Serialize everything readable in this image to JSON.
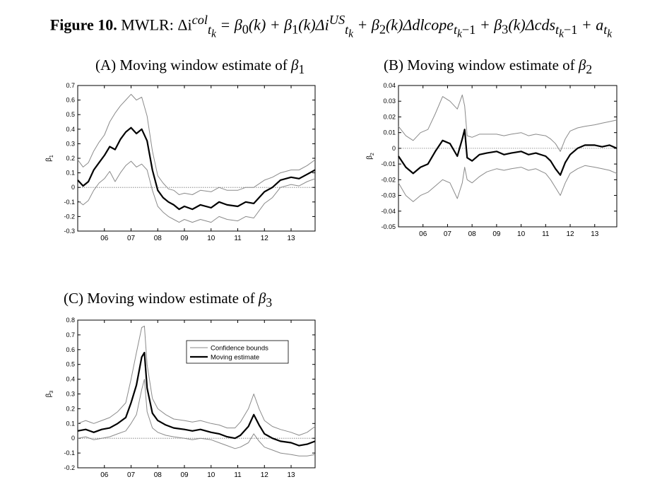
{
  "figure": {
    "label": "Figure 10.",
    "text": "MWLR: Δi",
    "lhs_sup": "col",
    "lhs_sub": "t",
    "lhs_subsub": "k",
    "eq": "= β",
    "b0": "0",
    "t0": "(k) + β",
    "b1": "1",
    "t1": "(k)Δi",
    "us_sup": "US",
    "us_sub": "t",
    "us_subsub": "k",
    "t2": " + β",
    "b2": "2",
    "t3": "(k)Δdlcope",
    "s3": "t",
    "s3k": "k",
    "s3m": "−1",
    "t4": " + β",
    "b3": "3",
    "t5": "(k)Δcds",
    "s5": "t",
    "s5k": "k",
    "s5m": "−1",
    "t6": " + a",
    "s6": "t",
    "s6k": "k"
  },
  "chart_data": [
    {
      "id": "A",
      "type": "line",
      "title_prefix": "(A) Moving window estimate of ",
      "title_symbol": "β",
      "title_sub": "1",
      "ylabel": "β",
      "ylabel_sub": "1",
      "xlabel": "",
      "xlim": [
        2005.0,
        2013.9
      ],
      "ylim": [
        -0.3,
        0.7
      ],
      "yticks": [
        -0.3,
        -0.2,
        -0.1,
        0,
        0.1,
        0.2,
        0.3,
        0.4,
        0.5,
        0.6,
        0.7
      ],
      "ytick_labels": [
        "-0.3",
        "-0.2",
        "-0.1",
        "0",
        "0.1",
        "0.2",
        "0.3",
        "0.4",
        "0.5",
        "0.6",
        "0.7"
      ],
      "xticks": [
        2006,
        2007,
        2008,
        2009,
        2010,
        2011,
        2012,
        2013
      ],
      "xtick_labels": [
        "06",
        "07",
        "08",
        "09",
        "10",
        "11",
        "12",
        "13"
      ],
      "zero_line": true,
      "series": [
        {
          "name": "Moving estimate",
          "x": [
            2005.0,
            2005.2,
            2005.4,
            2005.6,
            2005.8,
            2006.0,
            2006.2,
            2006.4,
            2006.6,
            2006.8,
            2007.0,
            2007.2,
            2007.4,
            2007.6,
            2007.8,
            2008.0,
            2008.2,
            2008.4,
            2008.6,
            2008.8,
            2009.0,
            2009.3,
            2009.6,
            2010.0,
            2010.3,
            2010.6,
            2011.0,
            2011.3,
            2011.6,
            2012.0,
            2012.3,
            2012.6,
            2013.0,
            2013.3,
            2013.6,
            2013.9
          ],
          "y": [
            0.05,
            0.01,
            0.04,
            0.12,
            0.17,
            0.22,
            0.28,
            0.26,
            0.33,
            0.38,
            0.41,
            0.37,
            0.4,
            0.32,
            0.12,
            -0.02,
            -0.07,
            -0.1,
            -0.12,
            -0.15,
            -0.13,
            -0.15,
            -0.12,
            -0.14,
            -0.1,
            -0.12,
            -0.13,
            -0.1,
            -0.11,
            -0.03,
            0.0,
            0.05,
            0.07,
            0.06,
            0.09,
            0.12
          ]
        },
        {
          "name": "Confidence bounds",
          "x": [
            2005.0,
            2005.2,
            2005.4,
            2005.6,
            2005.8,
            2006.0,
            2006.2,
            2006.4,
            2006.6,
            2006.8,
            2007.0,
            2007.2,
            2007.4,
            2007.6,
            2007.8,
            2008.0,
            2008.2,
            2008.4,
            2008.6,
            2008.8,
            2009.0,
            2009.3,
            2009.6,
            2010.0,
            2010.3,
            2010.6,
            2011.0,
            2011.3,
            2011.6,
            2012.0,
            2012.3,
            2012.6,
            2013.0,
            2013.3,
            2013.6,
            2013.9
          ],
          "y": [
            0.19,
            0.14,
            0.17,
            0.25,
            0.31,
            0.36,
            0.45,
            0.51,
            0.56,
            0.6,
            0.64,
            0.6,
            0.62,
            0.49,
            0.25,
            0.08,
            0.03,
            -0.01,
            -0.02,
            -0.05,
            -0.04,
            -0.05,
            -0.02,
            -0.03,
            0.0,
            -0.02,
            -0.02,
            0.0,
            0.0,
            0.05,
            0.07,
            0.1,
            0.12,
            0.12,
            0.15,
            0.19
          ]
        },
        {
          "name": "Confidence bounds (lower)",
          "x": [
            2005.0,
            2005.2,
            2005.4,
            2005.6,
            2005.8,
            2006.0,
            2006.2,
            2006.4,
            2006.6,
            2006.8,
            2007.0,
            2007.2,
            2007.4,
            2007.6,
            2007.8,
            2008.0,
            2008.2,
            2008.4,
            2008.6,
            2008.8,
            2009.0,
            2009.3,
            2009.6,
            2010.0,
            2010.3,
            2010.6,
            2011.0,
            2011.3,
            2011.6,
            2012.0,
            2012.3,
            2012.6,
            2013.0,
            2013.3,
            2013.6,
            2013.9
          ],
          "y": [
            -0.09,
            -0.12,
            -0.09,
            -0.02,
            0.03,
            0.06,
            0.11,
            0.04,
            0.1,
            0.15,
            0.18,
            0.14,
            0.16,
            0.12,
            -0.02,
            -0.13,
            -0.17,
            -0.2,
            -0.22,
            -0.24,
            -0.22,
            -0.24,
            -0.22,
            -0.24,
            -0.2,
            -0.22,
            -0.23,
            -0.2,
            -0.21,
            -0.11,
            -0.07,
            0.0,
            0.02,
            0.01,
            0.04,
            0.06
          ]
        }
      ]
    },
    {
      "id": "B",
      "type": "line",
      "title_prefix": "(B) Moving window estimate of ",
      "title_symbol": "β",
      "title_sub": "2",
      "ylabel": "β",
      "ylabel_sub": "2",
      "xlabel": "",
      "xlim": [
        2005.0,
        2013.9
      ],
      "ylim": [
        -0.05,
        0.04
      ],
      "yticks": [
        -0.05,
        -0.04,
        -0.03,
        -0.02,
        -0.01,
        0,
        0.01,
        0.02,
        0.03,
        0.04
      ],
      "ytick_labels": [
        "-0.05",
        "-0.04",
        "-0.03",
        "-0.02",
        "-0.01",
        "0",
        "0.01",
        "0.02",
        "0.03",
        "0.04"
      ],
      "xticks": [
        2006,
        2007,
        2008,
        2009,
        2010,
        2011,
        2012,
        2013
      ],
      "xtick_labels": [
        "06",
        "07",
        "08",
        "09",
        "10",
        "11",
        "12",
        "13"
      ],
      "zero_line": true,
      "series": [
        {
          "name": "Moving estimate",
          "x": [
            2005.0,
            2005.3,
            2005.6,
            2005.9,
            2006.2,
            2006.5,
            2006.8,
            2007.1,
            2007.4,
            2007.6,
            2007.7,
            2007.8,
            2008.0,
            2008.3,
            2008.6,
            2009.0,
            2009.3,
            2009.6,
            2010.0,
            2010.3,
            2010.6,
            2011.0,
            2011.2,
            2011.4,
            2011.6,
            2011.8,
            2012.0,
            2012.3,
            2012.6,
            2013.0,
            2013.3,
            2013.6,
            2013.9
          ],
          "y": [
            -0.005,
            -0.012,
            -0.016,
            -0.012,
            -0.01,
            -0.002,
            0.005,
            0.003,
            -0.005,
            0.006,
            0.012,
            -0.006,
            -0.008,
            -0.004,
            -0.003,
            -0.002,
            -0.004,
            -0.003,
            -0.002,
            -0.004,
            -0.003,
            -0.005,
            -0.008,
            -0.013,
            -0.017,
            -0.009,
            -0.004,
            0.0,
            0.002,
            0.002,
            0.001,
            0.002,
            0.0
          ]
        },
        {
          "name": "Confidence bounds",
          "x": [
            2005.0,
            2005.3,
            2005.6,
            2005.9,
            2006.2,
            2006.5,
            2006.8,
            2007.1,
            2007.4,
            2007.6,
            2007.7,
            2007.8,
            2008.0,
            2008.3,
            2008.6,
            2009.0,
            2009.3,
            2009.6,
            2010.0,
            2010.3,
            2010.6,
            2011.0,
            2011.2,
            2011.4,
            2011.6,
            2011.8,
            2012.0,
            2012.3,
            2012.6,
            2013.0,
            2013.3,
            2013.6,
            2013.9
          ],
          "y": [
            0.014,
            0.008,
            0.005,
            0.01,
            0.012,
            0.022,
            0.033,
            0.03,
            0.025,
            0.034,
            0.027,
            0.008,
            0.007,
            0.009,
            0.009,
            0.009,
            0.008,
            0.009,
            0.01,
            0.008,
            0.009,
            0.008,
            0.006,
            0.003,
            -0.002,
            0.006,
            0.011,
            0.013,
            0.014,
            0.015,
            0.016,
            0.017,
            0.018
          ]
        },
        {
          "name": "Confidence bounds (lower)",
          "x": [
            2005.0,
            2005.3,
            2005.6,
            2005.9,
            2006.2,
            2006.5,
            2006.8,
            2007.1,
            2007.4,
            2007.6,
            2007.7,
            2007.8,
            2008.0,
            2008.3,
            2008.6,
            2009.0,
            2009.3,
            2009.6,
            2010.0,
            2010.3,
            2010.6,
            2011.0,
            2011.2,
            2011.4,
            2011.6,
            2011.8,
            2012.0,
            2012.3,
            2012.6,
            2013.0,
            2013.3,
            2013.6,
            2013.9
          ],
          "y": [
            -0.022,
            -0.03,
            -0.034,
            -0.03,
            -0.028,
            -0.024,
            -0.02,
            -0.022,
            -0.032,
            -0.022,
            -0.012,
            -0.02,
            -0.022,
            -0.018,
            -0.015,
            -0.013,
            -0.014,
            -0.013,
            -0.012,
            -0.014,
            -0.013,
            -0.016,
            -0.02,
            -0.025,
            -0.03,
            -0.022,
            -0.016,
            -0.013,
            -0.011,
            -0.012,
            -0.013,
            -0.014,
            -0.016
          ]
        }
      ]
    },
    {
      "id": "C",
      "type": "line",
      "title_prefix": "(C) Moving window estimate of ",
      "title_symbol": "β",
      "title_sub": "3",
      "ylabel": "β",
      "ylabel_sub": "3",
      "xlabel": "",
      "xlim": [
        2005.0,
        2013.9
      ],
      "ylim": [
        -0.2,
        0.8
      ],
      "yticks": [
        -0.2,
        -0.1,
        0,
        0.1,
        0.2,
        0.3,
        0.4,
        0.5,
        0.6,
        0.7,
        0.8
      ],
      "ytick_labels": [
        "-0.2",
        "-0.1",
        "0",
        "0.1",
        "0.2",
        "0.3",
        "0.4",
        "0.5",
        "0.6",
        "0.7",
        "0.8"
      ],
      "xticks": [
        2006,
        2007,
        2008,
        2009,
        2010,
        2011,
        2012,
        2013
      ],
      "xtick_labels": [
        "06",
        "07",
        "08",
        "09",
        "10",
        "11",
        "12",
        "13"
      ],
      "zero_line": true,
      "legend": {
        "placement": "top-right",
        "entries": [
          "Confidence bounds",
          "Moving estimate"
        ]
      },
      "series": [
        {
          "name": "Moving estimate",
          "x": [
            2005.0,
            2005.3,
            2005.6,
            2005.9,
            2006.2,
            2006.5,
            2006.8,
            2007.0,
            2007.2,
            2007.4,
            2007.5,
            2007.6,
            2007.8,
            2008.0,
            2008.3,
            2008.6,
            2009.0,
            2009.3,
            2009.6,
            2010.0,
            2010.3,
            2010.6,
            2010.9,
            2011.1,
            2011.4,
            2011.6,
            2011.8,
            2012.0,
            2012.3,
            2012.6,
            2013.0,
            2013.3,
            2013.6,
            2013.9
          ],
          "y": [
            0.05,
            0.06,
            0.04,
            0.06,
            0.07,
            0.1,
            0.14,
            0.24,
            0.36,
            0.55,
            0.58,
            0.34,
            0.17,
            0.12,
            0.09,
            0.07,
            0.06,
            0.05,
            0.06,
            0.04,
            0.03,
            0.01,
            0.0,
            0.02,
            0.08,
            0.16,
            0.09,
            0.03,
            0.0,
            -0.02,
            -0.03,
            -0.05,
            -0.04,
            -0.02
          ]
        },
        {
          "name": "Confidence bounds",
          "x": [
            2005.0,
            2005.3,
            2005.6,
            2005.9,
            2006.2,
            2006.5,
            2006.8,
            2007.0,
            2007.2,
            2007.4,
            2007.5,
            2007.6,
            2007.8,
            2008.0,
            2008.3,
            2008.6,
            2009.0,
            2009.3,
            2009.6,
            2010.0,
            2010.3,
            2010.6,
            2010.9,
            2011.1,
            2011.4,
            2011.6,
            2011.8,
            2012.0,
            2012.3,
            2012.6,
            2013.0,
            2013.3,
            2013.6,
            2013.9
          ],
          "y": [
            0.1,
            0.12,
            0.1,
            0.12,
            0.14,
            0.18,
            0.24,
            0.4,
            0.58,
            0.75,
            0.76,
            0.5,
            0.27,
            0.2,
            0.16,
            0.13,
            0.12,
            0.11,
            0.12,
            0.1,
            0.09,
            0.07,
            0.07,
            0.11,
            0.2,
            0.3,
            0.2,
            0.12,
            0.08,
            0.06,
            0.04,
            0.02,
            0.04,
            0.08
          ]
        },
        {
          "name": "Confidence bounds (lower)",
          "x": [
            2005.0,
            2005.3,
            2005.6,
            2005.9,
            2006.2,
            2006.5,
            2006.8,
            2007.0,
            2007.2,
            2007.4,
            2007.5,
            2007.6,
            2007.8,
            2008.0,
            2008.3,
            2008.6,
            2009.0,
            2009.3,
            2009.6,
            2010.0,
            2010.3,
            2010.6,
            2010.9,
            2011.1,
            2011.4,
            2011.6,
            2011.8,
            2012.0,
            2012.3,
            2012.6,
            2013.0,
            2013.3,
            2013.6,
            2013.9
          ],
          "y": [
            0.0,
            0.01,
            -0.01,
            0.0,
            0.01,
            0.03,
            0.05,
            0.1,
            0.16,
            0.33,
            0.4,
            0.18,
            0.07,
            0.04,
            0.02,
            0.01,
            0.0,
            -0.01,
            0.0,
            -0.01,
            -0.03,
            -0.05,
            -0.07,
            -0.06,
            -0.03,
            0.03,
            -0.02,
            -0.06,
            -0.08,
            -0.1,
            -0.11,
            -0.12,
            -0.12,
            -0.11
          ]
        }
      ]
    }
  ]
}
